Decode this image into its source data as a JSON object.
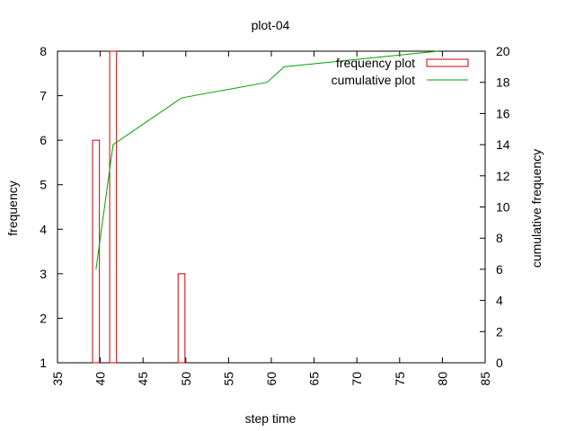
{
  "chart_data": {
    "type": "bar",
    "title": "plot-04",
    "xlabel": "step time",
    "ylabel": "frequency",
    "y2label": "cumulative frequency",
    "xlim": [
      35,
      85
    ],
    "ylim": [
      1,
      8
    ],
    "y2lim": [
      0,
      20
    ],
    "x_ticks": [
      35,
      40,
      45,
      50,
      55,
      60,
      65,
      70,
      75,
      80,
      85
    ],
    "y_ticks": [
      1,
      2,
      3,
      4,
      5,
      6,
      7,
      8
    ],
    "y2_ticks": [
      0,
      2,
      4,
      6,
      8,
      10,
      12,
      14,
      16,
      18,
      20
    ],
    "grid": false,
    "legend_position": "top-right",
    "series": [
      {
        "name": "frequency plot",
        "type": "bar",
        "axis": "y",
        "color": "#cc0000",
        "bars": [
          {
            "x_start": 39.1,
            "x_end": 39.9,
            "value": 6
          },
          {
            "x_start": 41.1,
            "x_end": 41.9,
            "value": 8
          },
          {
            "x_start": 49.1,
            "x_end": 49.9,
            "value": 3
          }
        ]
      },
      {
        "name": "cumulative plot",
        "type": "line",
        "axis": "y2",
        "color": "#00a000",
        "x": [
          39.5,
          41.5,
          49.5,
          59.5,
          61.5,
          79.5
        ],
        "values": [
          6,
          14,
          17,
          18,
          19,
          20
        ]
      }
    ]
  }
}
